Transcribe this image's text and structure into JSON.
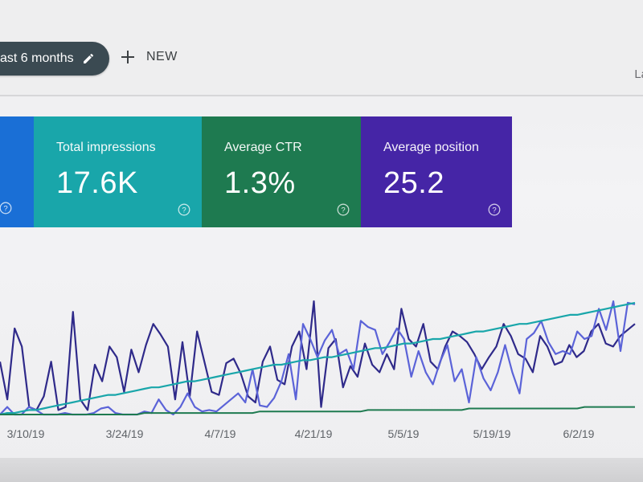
{
  "header": {
    "date_range_label": "ast 6 months",
    "new_label": "NEW",
    "last_updated_label": "La"
  },
  "cards": [
    {
      "id": "clicks",
      "title": "",
      "value": "",
      "color": "#1a6fd6"
    },
    {
      "id": "impressions",
      "title": "Total impressions",
      "value": "17.6K",
      "color": "#19a6aa"
    },
    {
      "id": "ctr",
      "title": "Average CTR",
      "value": "1.3%",
      "color": "#1e7a50"
    },
    {
      "id": "position",
      "title": "Average position",
      "value": "25.2",
      "color": "#4525a6"
    }
  ],
  "icons": {
    "edit": "pencil-icon",
    "new": "plus-icon",
    "help": "help-circle-icon"
  },
  "chart_data": {
    "type": "line",
    "x_ticks": [
      "3/10/19",
      "3/24/19",
      "4/7/19",
      "4/21/19",
      "5/5/19",
      "5/19/19",
      "6/2/19"
    ],
    "ylim": [
      0,
      100
    ],
    "grid": false,
    "legend": "none",
    "series": [
      {
        "color": "#2f2a8a",
        "values": [
          35,
          10,
          57,
          45,
          5,
          3,
          12,
          35,
          3,
          5,
          68,
          10,
          3,
          33,
          22,
          45,
          38,
          15,
          43,
          28,
          46,
          60,
          53,
          45,
          10,
          48,
          12,
          55,
          35,
          15,
          13,
          34,
          37,
          27,
          12,
          8,
          35,
          45,
          23,
          20,
          45,
          55,
          30,
          75,
          5,
          44,
          50,
          18,
          32,
          25,
          47,
          33,
          28,
          40,
          30,
          70,
          50,
          45,
          60,
          35,
          30,
          45,
          55,
          52,
          48,
          40,
          30,
          38,
          45,
          60,
          52,
          40,
          37,
          28,
          52,
          45,
          33,
          35,
          46,
          38,
          42,
          55,
          60,
          47,
          45,
          52,
          56,
          60
        ]
      },
      {
        "color": "#5b63d8",
        "values": [
          0,
          5,
          0,
          0,
          5,
          3,
          0,
          0,
          0,
          1,
          0,
          0,
          0,
          1,
          4,
          5,
          1,
          0,
          0,
          0,
          2,
          1,
          10,
          3,
          0,
          5,
          14,
          5,
          2,
          3,
          2,
          6,
          10,
          14,
          8,
          30,
          6,
          5,
          11,
          22,
          40,
          10,
          60,
          50,
          38,
          49,
          56,
          40,
          43,
          30,
          62,
          58,
          56,
          40,
          48,
          57,
          50,
          25,
          42,
          28,
          20,
          35,
          46,
          22,
          30,
          8,
          38,
          24,
          16,
          28,
          46,
          28,
          14,
          50,
          54,
          62,
          48,
          40,
          42,
          40,
          55,
          50,
          52,
          70,
          56,
          75,
          42,
          74,
          73
        ]
      },
      {
        "color": "#19a6aa",
        "values": [
          0,
          1,
          1,
          2,
          3,
          3,
          4,
          5,
          6,
          7,
          8,
          9,
          10,
          11,
          12,
          13,
          13,
          14,
          15,
          16,
          17,
          18,
          18,
          19,
          20,
          21,
          22,
          22,
          23,
          24,
          25,
          26,
          27,
          28,
          29,
          30,
          31,
          32,
          33,
          33,
          34,
          35,
          36,
          36,
          37,
          38,
          38,
          39,
          40,
          41,
          42,
          43,
          44,
          44,
          45,
          46,
          47,
          47,
          48,
          49,
          50,
          50,
          51,
          52,
          53,
          54,
          55,
          55,
          56,
          57,
          58,
          59,
          60,
          60,
          61,
          62,
          63,
          64,
          65,
          66,
          66,
          67,
          68,
          69,
          70,
          71,
          72,
          73,
          74
        ]
      },
      {
        "color": "#1e7a50",
        "values": [
          0,
          0,
          0,
          0,
          0,
          0,
          0,
          0,
          0,
          0,
          0,
          0,
          0,
          0,
          0,
          0,
          0,
          0,
          0,
          0,
          1,
          1,
          1,
          1,
          1,
          1,
          1,
          1,
          1,
          1,
          1,
          1,
          1,
          1,
          1,
          1,
          2,
          2,
          2,
          2,
          2,
          2,
          2,
          2,
          2,
          2,
          2,
          2,
          2,
          2,
          2,
          3,
          3,
          3,
          3,
          3,
          3,
          3,
          3,
          3,
          3,
          3,
          3,
          3,
          3,
          4,
          4,
          4,
          4,
          4,
          4,
          4,
          4,
          4,
          4,
          4,
          4,
          4,
          4,
          4,
          4,
          5,
          5,
          5,
          5,
          5,
          5,
          5,
          5
        ]
      }
    ]
  }
}
